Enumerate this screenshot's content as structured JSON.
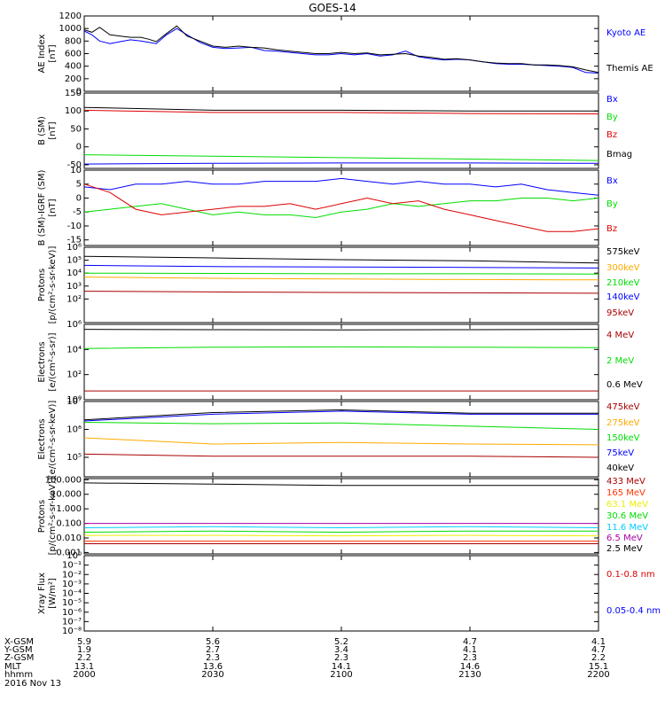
{
  "title": "GOES-14",
  "date": "2016 Nov 13",
  "colors": {
    "black": "#000000",
    "blue": "#0000ff",
    "green": "#00dd00",
    "red": "#dd0000",
    "orange": "#ffaa00",
    "yellow": "#eeee00",
    "cyan": "#00ccff",
    "purple": "#aa00aa",
    "darkred": "#aa0000"
  },
  "chart_data": [
    {
      "type": "line",
      "id": "ae",
      "ylabel": [
        "AE Index",
        "[nT]"
      ],
      "ylim": [
        0,
        1200
      ],
      "yticks": [
        {
          "v": 0,
          "l": "0"
        },
        {
          "v": 200,
          "l": "200"
        },
        {
          "v": 400,
          "l": "400"
        },
        {
          "v": 600,
          "l": "600"
        },
        {
          "v": 800,
          "l": "800"
        },
        {
          "v": 1000,
          "l": "1000"
        },
        {
          "v": 1200,
          "l": "1200"
        }
      ],
      "series": [
        {
          "name": "Kyoto AE",
          "color": "#0000ff",
          "x": [
            2000,
            2003,
            2006,
            2010,
            2014,
            2018,
            2022,
            2025,
            2028,
            2032,
            2036,
            2040,
            2045,
            2050,
            2055,
            2060,
            2065,
            2070,
            2075,
            2080,
            2085,
            2090,
            2095,
            2100,
            2105,
            2110,
            2115,
            2120,
            2125,
            2130,
            2135,
            2140,
            2145,
            2150,
            2155,
            2160,
            2165,
            2170,
            2175,
            2180,
            2185,
            2190,
            2195,
            2200
          ],
          "y": [
            960,
            900,
            800,
            760,
            790,
            820,
            800,
            780,
            760,
            900,
            1000,
            900,
            780,
            700,
            680,
            690,
            700,
            650,
            640,
            620,
            600,
            580,
            580,
            600,
            580,
            600,
            560,
            580,
            640,
            550,
            520,
            500,
            510,
            500,
            470,
            440,
            430,
            430,
            420,
            410,
            400,
            380,
            300,
            290
          ]
        },
        {
          "name": "Themis AE",
          "color": "#000000",
          "x": [
            2000,
            2003,
            2006,
            2010,
            2014,
            2018,
            2022,
            2025,
            2028,
            2032,
            2036,
            2040,
            2045,
            2050,
            2055,
            2060,
            2065,
            2070,
            2075,
            2080,
            2085,
            2090,
            2095,
            2100,
            2105,
            2110,
            2115,
            2120,
            2125,
            2130,
            2135,
            2140,
            2145,
            2150,
            2155,
            2160,
            2165,
            2170,
            2175,
            2180,
            2185,
            2190,
            2195,
            2200
          ],
          "y": [
            980,
            940,
            1020,
            900,
            880,
            860,
            860,
            830,
            790,
            920,
            1040,
            880,
            800,
            720,
            700,
            720,
            700,
            690,
            660,
            640,
            620,
            600,
            600,
            620,
            600,
            610,
            580,
            590,
            600,
            560,
            540,
            510,
            520,
            500,
            470,
            450,
            440,
            440,
            420,
            420,
            410,
            390,
            340,
            300
          ]
        }
      ]
    },
    {
      "type": "line",
      "id": "bsm",
      "ylabel": [
        "B (SM)",
        "[nT]"
      ],
      "ylim": [
        -60,
        150
      ],
      "yticks": [
        {
          "v": -50,
          "l": "-50"
        },
        {
          "v": 0,
          "l": "0"
        },
        {
          "v": 50,
          "l": "50"
        },
        {
          "v": 100,
          "l": "100"
        },
        {
          "v": 150,
          "l": "150"
        }
      ],
      "series": [
        {
          "name": "Bx",
          "color": "#0000ff",
          "x": [
            2000,
            2050,
            2100,
            2150,
            2200
          ],
          "y": [
            -48,
            -46,
            -45,
            -45,
            -46
          ]
        },
        {
          "name": "By",
          "color": "#00dd00",
          "x": [
            2000,
            2050,
            2100,
            2150,
            2200
          ],
          "y": [
            -22,
            -26,
            -30,
            -34,
            -38
          ]
        },
        {
          "name": "Bz",
          "color": "#dd0000",
          "x": [
            2000,
            2050,
            2100,
            2150,
            2200
          ],
          "y": [
            102,
            96,
            96,
            93,
            92
          ]
        },
        {
          "name": "Bmag",
          "color": "#000000",
          "x": [
            2000,
            2050,
            2100,
            2150,
            2200
          ],
          "y": [
            110,
            102,
            102,
            100,
            100
          ]
        }
      ]
    },
    {
      "type": "line",
      "id": "bigrf",
      "ylabel": [
        "B (SM)-IGRF (SM)",
        "[nT]"
      ],
      "ylim": [
        -17,
        10
      ],
      "yticks": [
        {
          "v": -15,
          "l": "-15"
        },
        {
          "v": -10,
          "l": "-10"
        },
        {
          "v": -5,
          "l": "-5"
        },
        {
          "v": 0,
          "l": "0"
        },
        {
          "v": 5,
          "l": "5"
        },
        {
          "v": 10,
          "l": "10"
        }
      ],
      "series": [
        {
          "name": "Bx",
          "color": "#0000ff",
          "x": [
            2000,
            2010,
            2020,
            2030,
            2040,
            2050,
            2060,
            2070,
            2080,
            2090,
            2100,
            2110,
            2120,
            2130,
            2140,
            2150,
            2160,
            2170,
            2180,
            2190,
            2200
          ],
          "y": [
            4,
            3,
            5,
            5,
            6,
            5,
            5,
            6,
            6,
            6,
            7,
            6,
            5,
            6,
            5,
            5,
            4,
            5,
            3,
            2,
            1
          ]
        },
        {
          "name": "By",
          "color": "#00dd00",
          "x": [
            2000,
            2010,
            2020,
            2030,
            2040,
            2050,
            2060,
            2070,
            2080,
            2090,
            2100,
            2110,
            2120,
            2130,
            2140,
            2150,
            2160,
            2170,
            2180,
            2190,
            2200
          ],
          "y": [
            -5,
            -4,
            -3,
            -2,
            -4,
            -6,
            -5,
            -6,
            -6,
            -7,
            -5,
            -4,
            -2,
            -3,
            -2,
            -1,
            -1,
            0,
            0,
            -1,
            0
          ]
        },
        {
          "name": "Bz",
          "color": "#dd0000",
          "x": [
            2000,
            2010,
            2020,
            2030,
            2040,
            2050,
            2060,
            2070,
            2080,
            2090,
            2100,
            2110,
            2120,
            2130,
            2140,
            2150,
            2160,
            2170,
            2180,
            2190,
            2200
          ],
          "y": [
            5,
            2,
            -4,
            -6,
            -5,
            -4,
            -3,
            -3,
            -2,
            -4,
            -2,
            0,
            -2,
            -1,
            -4,
            -6,
            -8,
            -10,
            -12,
            -12,
            -11
          ]
        }
      ]
    },
    {
      "type": "line",
      "id": "protons",
      "log": true,
      "ylabel": [
        "Protons",
        "[p/(cm²-s-sr-keV)]"
      ],
      "ylim": [
        1.5,
        1000000
      ],
      "yticks": [
        {
          "v": 100,
          "l": "10²"
        },
        {
          "v": 1000,
          "l": "10³"
        },
        {
          "v": 10000,
          "l": "10⁴"
        },
        {
          "v": 100000,
          "l": "10⁵"
        },
        {
          "v": 1000000,
          "l": "10⁶"
        }
      ],
      "series": [
        {
          "name": "575keV",
          "color": "#000000",
          "x": [
            2000,
            2050,
            2100,
            2150,
            2200
          ],
          "y": [
            200000,
            150000,
            110000,
            90000,
            60000
          ]
        },
        {
          "name": "300keV",
          "color": "#ffaa00",
          "x": [
            2000,
            2050,
            2100,
            2150,
            2200
          ],
          "y": [
            5000,
            4000,
            3500,
            3200,
            3000
          ]
        },
        {
          "name": "210keV",
          "color": "#00dd00",
          "x": [
            2000,
            2050,
            2100,
            2150,
            2200
          ],
          "y": [
            10000,
            9500,
            9000,
            9000,
            8500
          ]
        },
        {
          "name": "140keV",
          "color": "#0000ff",
          "x": [
            2000,
            2050,
            2100,
            2150,
            2200
          ],
          "y": [
            40000,
            32000,
            30000,
            28000,
            25000
          ]
        },
        {
          "name": "95keV",
          "color": "#aa0000",
          "x": [
            2000,
            2050,
            2100,
            2150,
            2200
          ],
          "y": [
            400,
            350,
            320,
            300,
            280
          ]
        }
      ]
    },
    {
      "type": "line",
      "id": "electrons1",
      "log": true,
      "ylabel": [
        "Electrons",
        "[e/(cm²-s-sr)]"
      ],
      "ylim": [
        1,
        1000000
      ],
      "yticks": [
        {
          "v": 1,
          "l": "10⁰"
        },
        {
          "v": 100,
          "l": "10²"
        },
        {
          "v": 10000,
          "l": "10⁴"
        },
        {
          "v": 1000000,
          "l": "10⁶"
        }
      ],
      "series": [
        {
          "name": "4 MeV",
          "color": "#aa0000",
          "x": [
            2000,
            2050,
            2100,
            2150,
            2200
          ],
          "y": [
            5,
            5,
            5,
            5,
            5
          ]
        },
        {
          "name": "2 MeV",
          "color": "#00dd00",
          "x": [
            2000,
            2050,
            2100,
            2150,
            2200
          ],
          "y": [
            12000,
            15000,
            16000,
            15000,
            14000
          ]
        },
        {
          "name": "0.6 MeV",
          "color": "#000000",
          "x": [
            2000,
            2050,
            2100,
            2150,
            2200
          ],
          "y": [
            400000,
            380000,
            360000,
            380000,
            400000
          ]
        }
      ]
    },
    {
      "type": "line",
      "id": "electrons2",
      "log": true,
      "ylabel": [
        "Electrons",
        "[e/(cm²-s-sr-keV)]"
      ],
      "ylim": [
        20000,
        10000000
      ],
      "yticks": [
        {
          "v": 100000,
          "l": "10⁵"
        },
        {
          "v": 1000000,
          "l": "10⁶"
        },
        {
          "v": 10000000,
          "l": "10⁷"
        }
      ],
      "series": [
        {
          "name": "475keV",
          "color": "#aa0000",
          "x": [
            2000,
            2050,
            2100,
            2150,
            2200
          ],
          "y": [
            130000,
            110000,
            110000,
            110000,
            100000
          ]
        },
        {
          "name": "275keV",
          "color": "#ffaa00",
          "x": [
            2000,
            2050,
            2100,
            2150,
            2200
          ],
          "y": [
            500000,
            300000,
            340000,
            300000,
            280000
          ]
        },
        {
          "name": "150keV",
          "color": "#00dd00",
          "x": [
            2000,
            2050,
            2100,
            2150,
            2200
          ],
          "y": [
            1800000,
            1600000,
            1700000,
            1300000,
            1000000
          ]
        },
        {
          "name": "75keV",
          "color": "#0000ff",
          "x": [
            2000,
            2050,
            2100,
            2150,
            2200
          ],
          "y": [
            2000000,
            3500000,
            4500000,
            3500000,
            3500000
          ]
        },
        {
          "name": "40keV",
          "color": "#000000",
          "x": [
            2000,
            2050,
            2100,
            2150,
            2200
          ],
          "y": [
            2200000,
            4000000,
            5000000,
            3800000,
            3800000
          ]
        }
      ]
    },
    {
      "type": "line",
      "id": "protons2",
      "log": true,
      "ylabel": [
        "Protons",
        "[p/(cm²-s-sr-keV)]"
      ],
      "ylim": [
        0.0008,
        120
      ],
      "yticks": [
        {
          "v": 0.001,
          "l": "0.001"
        },
        {
          "v": 0.01,
          "l": "0.010"
        },
        {
          "v": 0.1,
          "l": "0.100"
        },
        {
          "v": 1,
          "l": "1.000"
        },
        {
          "v": 10,
          "l": "10.000"
        },
        {
          "v": 100,
          "l": "100.000"
        }
      ],
      "series": [
        {
          "name": "433 MeV",
          "color": "#aa0000",
          "x": [
            2000,
            2050,
            2100,
            2150,
            2200
          ],
          "y": [
            0.004,
            0.004,
            0.004,
            0.004,
            0.004
          ]
        },
        {
          "name": "165 MeV",
          "color": "#ff3300",
          "x": [
            2000,
            2050,
            2100,
            2150,
            2200
          ],
          "y": [
            0.006,
            0.006,
            0.006,
            0.006,
            0.006
          ]
        },
        {
          "name": "63.1 MeV",
          "color": "#eeee00",
          "x": [
            2000,
            2050,
            2100,
            2150,
            2200
          ],
          "y": [
            0.015,
            0.015,
            0.014,
            0.015,
            0.014
          ]
        },
        {
          "name": "30.6 MeV",
          "color": "#00dd00",
          "x": [
            2000,
            2050,
            2100,
            2150,
            2200
          ],
          "y": [
            0.025,
            0.03,
            0.025,
            0.03,
            0.03
          ]
        },
        {
          "name": "11.6 MeV",
          "color": "#00ccff",
          "x": [
            2000,
            2050,
            2100,
            2150,
            2200
          ],
          "y": [
            0.05,
            0.06,
            0.05,
            0.06,
            0.05
          ]
        },
        {
          "name": "6.5 MeV",
          "color": "#aa00aa",
          "x": [
            2000,
            2050,
            2100,
            2150,
            2200
          ],
          "y": [
            0.1,
            0.1,
            0.1,
            0.1,
            0.1
          ]
        },
        {
          "name": "2.5 MeV",
          "color": "#000000",
          "x": [
            2000,
            2050,
            2100,
            2150,
            2200
          ],
          "y": [
            60,
            50,
            40,
            40,
            40
          ]
        }
      ]
    },
    {
      "type": "line",
      "id": "xray",
      "log": true,
      "ylabel": [
        "Xray Flux",
        "[W/m²]"
      ],
      "ylim": [
        1e-08,
        1
      ],
      "yticks": [
        {
          "v": 1,
          "l": "10⁰"
        },
        {
          "v": 0.1,
          "l": "10⁻¹"
        },
        {
          "v": 0.01,
          "l": "10⁻²"
        },
        {
          "v": 0.001,
          "l": "10⁻³"
        },
        {
          "v": 0.0001,
          "l": "10⁻⁴"
        },
        {
          "v": 1e-05,
          "l": "10⁻⁵"
        },
        {
          "v": 1e-06,
          "l": "10⁻⁶"
        },
        {
          "v": 1e-07,
          "l": "10⁻⁷"
        },
        {
          "v": 1e-08,
          "l": "10⁻⁸"
        }
      ],
      "series": [
        {
          "name": "0.1-0.8 nm",
          "color": "#dd0000",
          "x": [],
          "y": []
        },
        {
          "name": "0.05-0.4 nm",
          "color": "#0000ff",
          "x": [],
          "y": []
        }
      ]
    }
  ],
  "xaxis": {
    "ticks": [
      2000,
      2050,
      2100,
      2150,
      2200
    ],
    "rows": [
      {
        "label": "X-GSM",
        "values": [
          "5.9",
          "5.6",
          "5.2",
          "4.7",
          "4.1"
        ]
      },
      {
        "label": "Y-GSM",
        "values": [
          "1.9",
          "2.7",
          "3.4",
          "4.1",
          "4.7"
        ]
      },
      {
        "label": "Z-GSM",
        "values": [
          "2.2",
          "2.3",
          "2.3",
          "2.3",
          "2.2"
        ]
      },
      {
        "label": "MLT",
        "values": [
          "13.1",
          "13.6",
          "14.1",
          "14.6",
          "15.1"
        ]
      },
      {
        "label": "hhmm",
        "values": [
          "2000",
          "2030",
          "2100",
          "2130",
          "2200"
        ]
      }
    ]
  }
}
